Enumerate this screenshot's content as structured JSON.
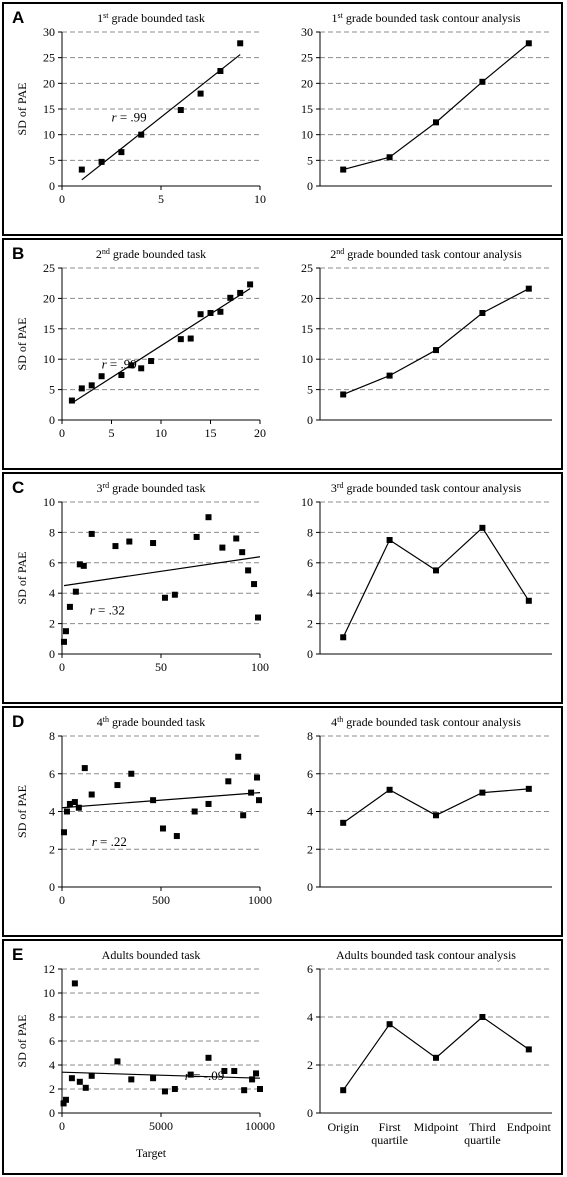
{
  "panels": [
    {
      "letter": "A",
      "top": 2,
      "height": 234
    },
    {
      "letter": "B",
      "top": 238,
      "height": 232
    },
    {
      "letter": "C",
      "top": 472,
      "height": 232
    },
    {
      "letter": "D",
      "top": 706,
      "height": 231
    },
    {
      "letter": "E",
      "top": 939,
      "height": 236
    }
  ],
  "chart_data": [
    {
      "type": "scatter",
      "panel": "A",
      "title": "1st grade bounded task",
      "title_parts": {
        "pre": "1",
        "sup": "st",
        "post": " grade bounded task"
      },
      "ylabel": "SD of PAE",
      "xlabel": "",
      "xlim": [
        0,
        10
      ],
      "ylim": [
        0,
        30
      ],
      "xticks": [
        0,
        5,
        10
      ],
      "yticks": [
        0,
        5,
        10,
        15,
        20,
        25,
        30
      ],
      "annotation": ".99",
      "points": [
        [
          1,
          3.2
        ],
        [
          2,
          4.7
        ],
        [
          3,
          6.6
        ],
        [
          4,
          10
        ],
        [
          6,
          14.8
        ],
        [
          7,
          18
        ],
        [
          8,
          22.4
        ],
        [
          9,
          27.8
        ]
      ],
      "trendline": [
        [
          1,
          1.2
        ],
        [
          9,
          25.6
        ]
      ]
    },
    {
      "type": "line",
      "panel": "A",
      "title": "1st grade bounded task contour analysis",
      "title_parts": {
        "pre": "1",
        "sup": "st",
        "post": " grade bounded task contour analysis"
      },
      "ylim": [
        0,
        30
      ],
      "yticks": [
        0,
        5,
        10,
        15,
        20,
        25,
        30
      ],
      "categories": [
        "",
        "",
        "",
        "",
        ""
      ],
      "values": [
        3.2,
        5.6,
        12.4,
        20.3,
        27.8
      ]
    },
    {
      "type": "scatter",
      "panel": "B",
      "title": "2nd grade bounded task",
      "title_parts": {
        "pre": "2",
        "sup": "nd",
        "post": " grade bounded task"
      },
      "ylabel": "SD of PAE",
      "xlabel": "",
      "xlim": [
        0,
        20
      ],
      "ylim": [
        0,
        25
      ],
      "xticks": [
        0,
        5,
        10,
        15,
        20
      ],
      "yticks": [
        0,
        5,
        10,
        15,
        20,
        25
      ],
      "annotation": ".99",
      "points": [
        [
          1,
          3.2
        ],
        [
          2,
          5.2
        ],
        [
          3,
          5.7
        ],
        [
          4,
          7.2
        ],
        [
          6,
          7.4
        ],
        [
          7,
          9
        ],
        [
          8,
          8.5
        ],
        [
          9,
          9.7
        ],
        [
          12,
          13.3
        ],
        [
          13,
          13.4
        ],
        [
          14,
          17.4
        ],
        [
          15,
          17.6
        ],
        [
          16,
          17.8
        ],
        [
          17,
          20.1
        ],
        [
          18,
          20.9
        ],
        [
          19,
          22.3
        ]
      ],
      "trendline": [
        [
          1,
          2.8
        ],
        [
          19,
          21.6
        ]
      ]
    },
    {
      "type": "line",
      "panel": "B",
      "title": "2nd grade bounded task contour analysis",
      "title_parts": {
        "pre": "2",
        "sup": "nd",
        "post": " grade bounded task contour analysis"
      },
      "ylim": [
        0,
        25
      ],
      "yticks": [
        0,
        5,
        10,
        15,
        20,
        25
      ],
      "categories": [
        "",
        "",
        "",
        "",
        ""
      ],
      "values": [
        4.2,
        7.3,
        11.5,
        17.6,
        21.6
      ]
    },
    {
      "type": "scatter",
      "panel": "C",
      "title": "3rd grade bounded task",
      "title_parts": {
        "pre": "3",
        "sup": "rd",
        "post": " grade bounded task"
      },
      "ylabel": "SD of PAE",
      "xlabel": "",
      "xlim": [
        0,
        100
      ],
      "ylim": [
        0,
        10
      ],
      "xticks": [
        0,
        50,
        100
      ],
      "yticks": [
        0,
        2,
        4,
        6,
        8,
        10
      ],
      "annotation": ".32",
      "points": [
        [
          1,
          0.8
        ],
        [
          2,
          1.5
        ],
        [
          4,
          3.1
        ],
        [
          7,
          4.1
        ],
        [
          9,
          5.9
        ],
        [
          11,
          5.8
        ],
        [
          15,
          7.9
        ],
        [
          27,
          7.1
        ],
        [
          34,
          7.4
        ],
        [
          46,
          7.3
        ],
        [
          52,
          3.7
        ],
        [
          57,
          3.9
        ],
        [
          68,
          7.7
        ],
        [
          74,
          9
        ],
        [
          81,
          7
        ],
        [
          88,
          7.6
        ],
        [
          91,
          6.7
        ],
        [
          94,
          5.5
        ],
        [
          97,
          4.6
        ],
        [
          99,
          2.4
        ]
      ],
      "trendline": [
        [
          1,
          4.5
        ],
        [
          100,
          6.4
        ]
      ]
    },
    {
      "type": "line",
      "panel": "C",
      "title": "3rd grade bounded task contour analysis",
      "title_parts": {
        "pre": "3",
        "sup": "rd",
        "post": " grade bounded task contour analysis"
      },
      "ylim": [
        0,
        10
      ],
      "yticks": [
        0,
        2,
        4,
        6,
        8,
        10
      ],
      "categories": [
        "",
        "",
        "",
        "",
        ""
      ],
      "values": [
        1.1,
        7.5,
        5.5,
        8.3,
        3.5
      ]
    },
    {
      "type": "scatter",
      "panel": "D",
      "title": "4th grade bounded task",
      "title_parts": {
        "pre": "4",
        "sup": "th",
        "post": " grade bounded task"
      },
      "ylabel": "SD of PAE",
      "xlabel": "",
      "xlim": [
        0,
        1000
      ],
      "ylim": [
        0,
        8
      ],
      "xticks": [
        0,
        500,
        1000
      ],
      "yticks": [
        0,
        2,
        4,
        6,
        8
      ],
      "annotation": ".22",
      "points": [
        [
          10,
          2.9
        ],
        [
          25,
          4
        ],
        [
          40,
          4.4
        ],
        [
          65,
          4.5
        ],
        [
          85,
          4.2
        ],
        [
          115,
          6.3
        ],
        [
          150,
          4.9
        ],
        [
          280,
          5.4
        ],
        [
          350,
          6
        ],
        [
          460,
          4.6
        ],
        [
          510,
          3.1
        ],
        [
          580,
          2.7
        ],
        [
          670,
          4
        ],
        [
          740,
          4.4
        ],
        [
          840,
          5.6
        ],
        [
          890,
          6.9
        ],
        [
          915,
          3.8
        ],
        [
          955,
          5
        ],
        [
          985,
          5.8
        ],
        [
          995,
          4.6
        ]
      ],
      "trendline": [
        [
          0,
          4.2
        ],
        [
          1000,
          5
        ]
      ]
    },
    {
      "type": "line",
      "panel": "D",
      "title": "4th grade bounded task contour analysis",
      "title_parts": {
        "pre": "4",
        "sup": "th",
        "post": " grade bounded task contour analysis"
      },
      "ylim": [
        0,
        8
      ],
      "yticks": [
        0,
        2,
        4,
        6,
        8
      ],
      "categories": [
        "",
        "",
        "",
        "",
        ""
      ],
      "values": [
        3.4,
        5.15,
        3.8,
        5,
        5.2
      ]
    },
    {
      "type": "scatter",
      "panel": "E",
      "title": "Adults bounded task",
      "title_parts": {
        "pre": "Adults bounded task",
        "sup": "",
        "post": ""
      },
      "ylabel": "SD of PAE",
      "xlabel": "Target",
      "xlim": [
        0,
        10000
      ],
      "ylim": [
        0,
        12
      ],
      "xticks": [
        0,
        5000,
        10000
      ],
      "yticks": [
        0,
        2,
        4,
        6,
        8,
        10,
        12
      ],
      "annotation": "-.09",
      "points": [
        [
          80,
          0.8
        ],
        [
          200,
          1.1
        ],
        [
          500,
          2.9
        ],
        [
          650,
          10.8
        ],
        [
          900,
          2.6
        ],
        [
          1200,
          2.1
        ],
        [
          1500,
          3.1
        ],
        [
          2800,
          4.3
        ],
        [
          3500,
          2.8
        ],
        [
          4600,
          2.9
        ],
        [
          5200,
          1.8
        ],
        [
          5700,
          2
        ],
        [
          6500,
          3.2
        ],
        [
          7400,
          4.6
        ],
        [
          8200,
          3.5
        ],
        [
          8700,
          3.5
        ],
        [
          9200,
          1.9
        ],
        [
          9600,
          2.8
        ],
        [
          9800,
          3.3
        ],
        [
          10000,
          2
        ]
      ],
      "trendline": [
        [
          0,
          3.4
        ],
        [
          10000,
          2.9
        ]
      ]
    },
    {
      "type": "line",
      "panel": "E",
      "title": "Adults bounded task contour analysis",
      "title_parts": {
        "pre": "Adults bounded task contour analysis",
        "sup": "",
        "post": ""
      },
      "ylim": [
        0,
        6
      ],
      "yticks": [
        0,
        2,
        4,
        6
      ],
      "categories": [
        "Origin",
        "First quartile",
        "Midpoint",
        "Third quartile",
        "Endpoint"
      ],
      "values": [
        0.95,
        3.7,
        2.3,
        4,
        2.65
      ]
    }
  ]
}
